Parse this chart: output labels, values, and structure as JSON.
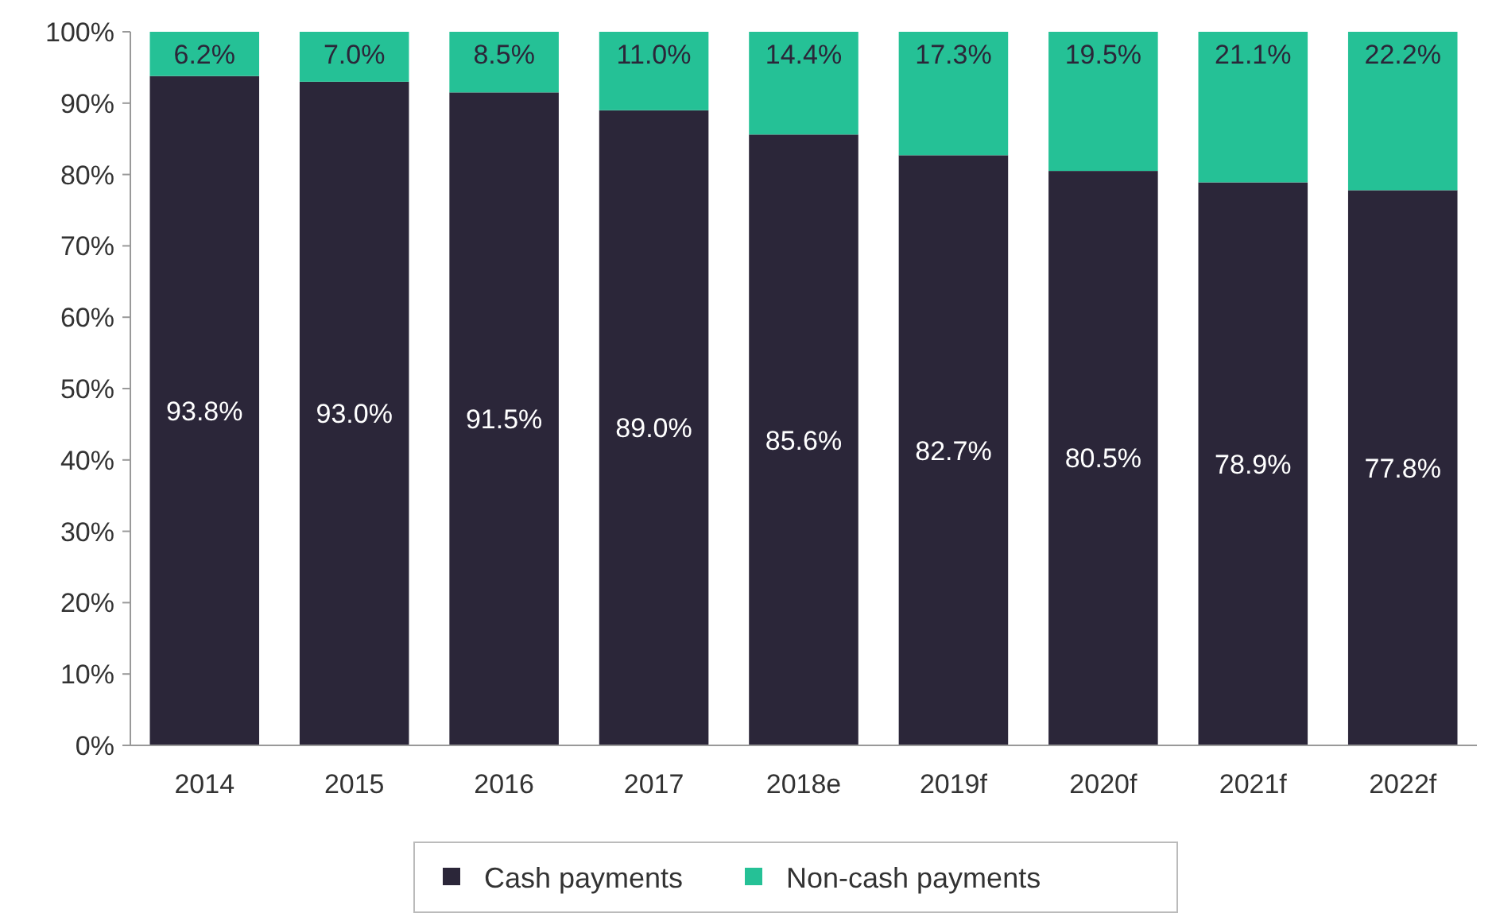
{
  "chart_data": {
    "type": "bar",
    "stacked": true,
    "categories": [
      "2014",
      "2015",
      "2016",
      "2017",
      "2018e",
      "2019f",
      "2020f",
      "2021f",
      "2022f"
    ],
    "series": [
      {
        "name": "Cash payments",
        "color": "#2b2639",
        "values": [
          93.8,
          93.0,
          91.5,
          89.0,
          85.6,
          82.7,
          80.5,
          78.9,
          77.8
        ],
        "value_labels": [
          "93.8%",
          "93.0%",
          "91.5%",
          "89.0%",
          "85.6%",
          "82.7%",
          "80.5%",
          "78.9%",
          "77.8%"
        ]
      },
      {
        "name": "Non-cash payments",
        "color": "#25c196",
        "values": [
          6.2,
          7.0,
          8.5,
          11.0,
          14.4,
          17.3,
          19.5,
          21.1,
          22.2
        ],
        "value_labels": [
          "6.2%",
          "7.0%",
          "8.5%",
          "11.0%",
          "14.4%",
          "17.3%",
          "19.5%",
          "21.1%",
          "22.2%"
        ]
      }
    ],
    "ylim": [
      0,
      100
    ],
    "yticks": [
      {
        "value": 0,
        "label": "0%"
      },
      {
        "value": 10,
        "label": "10%"
      },
      {
        "value": 20,
        "label": "20%"
      },
      {
        "value": 30,
        "label": "30%"
      },
      {
        "value": 40,
        "label": "40%"
      },
      {
        "value": 50,
        "label": "50%"
      },
      {
        "value": 60,
        "label": "60%"
      },
      {
        "value": 70,
        "label": "70%"
      },
      {
        "value": 80,
        "label": "80%"
      },
      {
        "value": 90,
        "label": "90%"
      },
      {
        "value": 100,
        "label": "100%"
      }
    ],
    "legend": "bottom"
  }
}
